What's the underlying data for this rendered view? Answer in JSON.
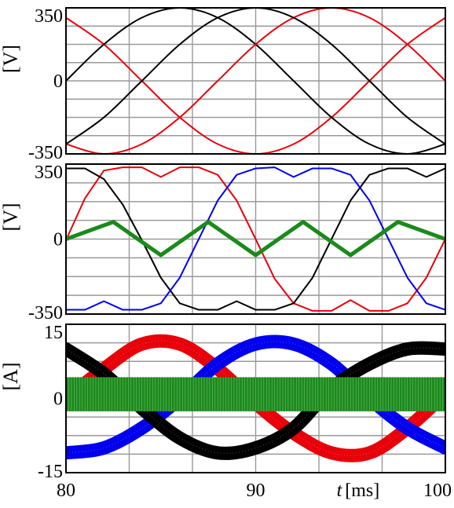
{
  "chart_data": [
    {
      "type": "line",
      "ylabel": "[V]",
      "ylim": [
        -350,
        350
      ],
      "yticks": [
        "350",
        "0",
        "-350"
      ],
      "xlim": [
        80,
        100
      ],
      "grid": true,
      "series": [
        {
          "color": "#e8000a",
          "points": [
            [
              80,
              303
            ],
            [
              82,
              175
            ],
            [
              84,
              0
            ],
            [
              86,
              -175
            ],
            [
              88,
              -303
            ],
            [
              90,
              -350
            ],
            [
              92,
              -303
            ],
            [
              94,
              -175
            ],
            [
              96,
              0
            ],
            [
              98,
              175
            ],
            [
              100,
              303
            ]
          ]
        },
        {
          "color": "#000000",
          "points": [
            [
              80,
              0
            ],
            [
              82,
              175
            ],
            [
              84,
              303
            ],
            [
              86,
              350
            ],
            [
              88,
              303
            ],
            [
              90,
              175
            ],
            [
              92,
              0
            ],
            [
              94,
              -175
            ],
            [
              96,
              -303
            ],
            [
              98,
              -350
            ],
            [
              100,
              -303
            ]
          ]
        },
        {
          "color": "#e8000a",
          "points": [
            [
              80,
              -303
            ],
            [
              82,
              -350
            ],
            [
              84,
              -303
            ],
            [
              86,
              -175
            ],
            [
              88,
              0
            ],
            [
              90,
              175
            ],
            [
              92,
              303
            ],
            [
              94,
              350
            ],
            [
              96,
              303
            ],
            [
              98,
              175
            ],
            [
              100,
              0
            ]
          ]
        },
        {
          "color": "#000000",
          "points": [
            [
              80,
              -303
            ],
            [
              82,
              -175
            ],
            [
              84,
              0
            ],
            [
              86,
              175
            ],
            [
              88,
              303
            ],
            [
              90,
              350
            ],
            [
              92,
              303
            ],
            [
              94,
              175
            ],
            [
              96,
              0
            ],
            [
              98,
              -175
            ],
            [
              100,
              -303
            ]
          ]
        }
      ]
    },
    {
      "type": "line",
      "ylabel": "[V]",
      "ylim": [
        -350,
        350
      ],
      "yticks": [
        "350",
        "0",
        "-350"
      ],
      "xlim": [
        80,
        100
      ],
      "grid": true,
      "series": [
        {
          "color": "#e8000a",
          "points": [
            [
              80,
              -5
            ],
            [
              81,
              190
            ],
            [
              82,
              320
            ],
            [
              83,
              335
            ],
            [
              84,
              335
            ],
            [
              85,
              290
            ],
            [
              86,
              335
            ],
            [
              87,
              335
            ],
            [
              88,
              300
            ],
            [
              89,
              180
            ],
            [
              90,
              0
            ],
            [
              91,
              -185
            ],
            [
              92,
              -300
            ],
            [
              93,
              -335
            ],
            [
              94,
              -335
            ],
            [
              95,
              -285
            ],
            [
              96,
              -335
            ],
            [
              97,
              -335
            ],
            [
              98,
              -300
            ],
            [
              99,
              -180
            ],
            [
              100,
              0
            ]
          ]
        },
        {
          "color": "#000000",
          "points": [
            [
              80,
              330
            ],
            [
              81,
              330
            ],
            [
              82,
              280
            ],
            [
              83,
              160
            ],
            [
              84,
              -5
            ],
            [
              85,
              -180
            ],
            [
              86,
              -300
            ],
            [
              87,
              -330
            ],
            [
              88,
              -330
            ],
            [
              89,
              -290
            ],
            [
              90,
              -330
            ],
            [
              91,
              -330
            ],
            [
              92,
              -300
            ],
            [
              93,
              -180
            ],
            [
              94,
              0
            ],
            [
              95,
              180
            ],
            [
              96,
              300
            ],
            [
              97,
              330
            ],
            [
              98,
              330
            ],
            [
              99,
              290
            ],
            [
              100,
              330
            ]
          ]
        },
        {
          "color": "#0000ee",
          "points": [
            [
              80,
              -330
            ],
            [
              81,
              -330
            ],
            [
              82,
              -290
            ],
            [
              83,
              -330
            ],
            [
              84,
              -330
            ],
            [
              85,
              -300
            ],
            [
              86,
              -180
            ],
            [
              87,
              0
            ],
            [
              88,
              180
            ],
            [
              89,
              300
            ],
            [
              90,
              330
            ],
            [
              91,
              335
            ],
            [
              92,
              290
            ],
            [
              93,
              330
            ],
            [
              94,
              330
            ],
            [
              95,
              300
            ],
            [
              96,
              180
            ],
            [
              97,
              0
            ],
            [
              98,
              -180
            ],
            [
              99,
              -300
            ],
            [
              100,
              -330
            ]
          ]
        },
        {
          "color": "#1a8a1a",
          "points": [
            [
              80,
              0
            ],
            [
              82.5,
              80
            ],
            [
              85,
              -75
            ],
            [
              87.5,
              80
            ],
            [
              90,
              -75
            ],
            [
              92.5,
              80
            ],
            [
              95,
              -75
            ],
            [
              97.5,
              80
            ],
            [
              100,
              0
            ]
          ]
        }
      ]
    },
    {
      "type": "line",
      "ylabel": "[A]",
      "ylim": [
        -15,
        15
      ],
      "yticks": [
        "15",
        "0",
        "-15"
      ],
      "xlim": [
        80,
        100
      ],
      "xticks": [
        "80",
        "90",
        "100"
      ],
      "xlabel_var": "t",
      "xlabel_unit": "[ms]",
      "grid": true,
      "series": [
        {
          "color": "#e8000a",
          "points": [
            [
              80,
              0
            ],
            [
              82,
              6
            ],
            [
              84,
              11
            ],
            [
              86,
              11
            ],
            [
              88,
              6
            ],
            [
              90,
              -1
            ],
            [
              92,
              -7
            ],
            [
              94,
              -11
            ],
            [
              96,
              -11
            ],
            [
              98,
              -6
            ],
            [
              100,
              1
            ]
          ]
        },
        {
          "color": "#0000ee",
          "points": [
            [
              80,
              -11
            ],
            [
              82,
              -10
            ],
            [
              84,
              -6
            ],
            [
              86,
              0
            ],
            [
              88,
              7
            ],
            [
              90,
              11
            ],
            [
              92,
              11
            ],
            [
              94,
              7
            ],
            [
              96,
              0
            ],
            [
              98,
              -6
            ],
            [
              100,
              -10
            ]
          ]
        },
        {
          "color": "#000000",
          "points": [
            [
              80,
              10
            ],
            [
              82,
              5
            ],
            [
              84,
              -2
            ],
            [
              86,
              -8
            ],
            [
              88,
              -11
            ],
            [
              90,
              -10
            ],
            [
              92,
              -6
            ],
            [
              94,
              2
            ],
            [
              96,
              7
            ],
            [
              98,
              10
            ],
            [
              100,
              10
            ]
          ]
        },
        {
          "color": "#1a8a1a",
          "band": [
            -2.6,
            4.3
          ],
          "points": [
            [
              80,
              0.8
            ],
            [
              100,
              0.8
            ]
          ]
        }
      ]
    }
  ]
}
